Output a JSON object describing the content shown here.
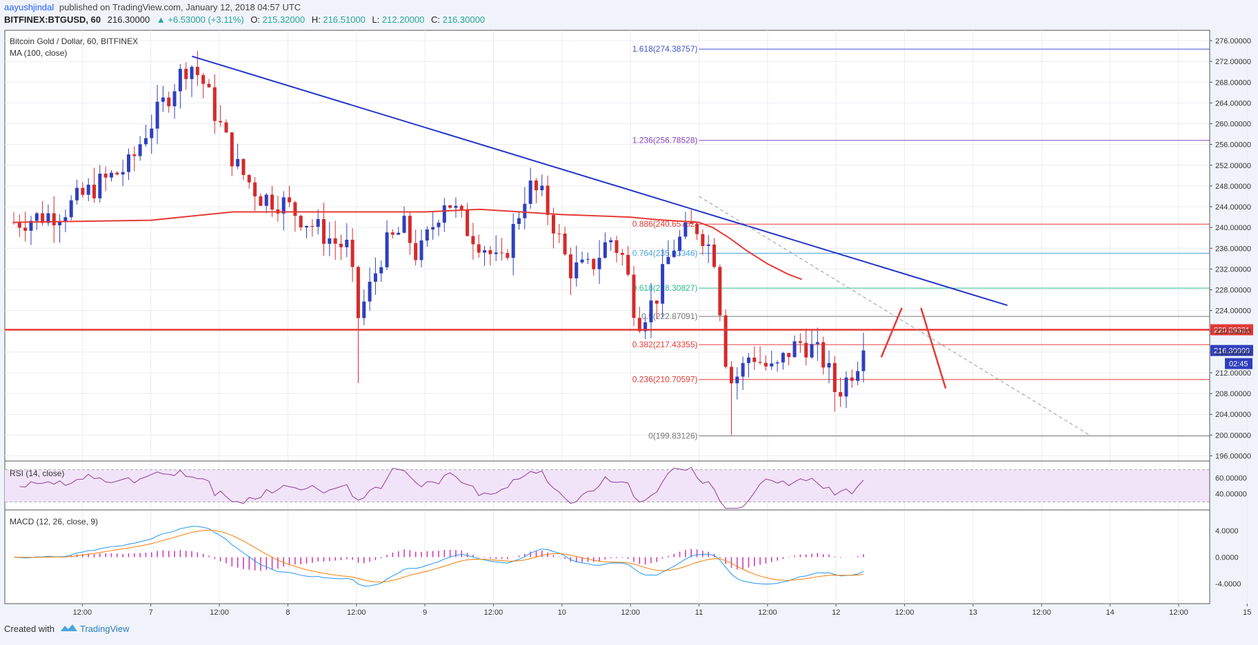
{
  "header": {
    "author": "aayushjindal",
    "published_text": "published on TradingView.com, January 12, 2018 04:57 UTC",
    "symbol": "BITFINEX:BTGUSD, 60",
    "price": "216.30000",
    "change": "▲ +6.53000 (+3.11%)",
    "o_label": "O:",
    "o_value": "215.32000",
    "h_label": "H:",
    "h_value": "216.51000",
    "l_label": "L:",
    "l_value": "212.20000",
    "c_label": "C:",
    "c_value": "216.30000"
  },
  "footer": {
    "created_with": "Created with",
    "brand": "TradingView"
  },
  "colors": {
    "up": "#2f3fbd",
    "down": "#d42b2b",
    "ma": "#e53935",
    "trend": "#2233cc",
    "rsi": "#8e3a9e",
    "rsi_band": "#f2e4f8",
    "macd": "#2196f3",
    "signal": "#f57c00",
    "hist": "#cc33aa",
    "fib_ext": "#4455cc",
    "fib_ext2": "#8844bb",
    "fib_red": "#e53935",
    "fib_blue": "#4aa3df",
    "fib_green": "#2bbf8f",
    "fib_gray": "#777777"
  },
  "chart_data": {
    "type": "candlestick",
    "title": "Bitcoin Gold / Dollar, 60, BITFINEX",
    "indicator_label": "MA (100, close)",
    "ylim": [
      195,
      278
    ],
    "y_ticks": [
      "276.00000",
      "272.00000",
      "268.00000",
      "264.00000",
      "260.00000",
      "256.00000",
      "252.00000",
      "248.00000",
      "244.00000",
      "240.00000",
      "236.00000",
      "232.00000",
      "228.00000",
      "224.00000",
      "220.00000",
      "216.00000",
      "212.00000",
      "208.00000",
      "204.00000",
      "200.00000",
      "196.00000"
    ],
    "x_ticks": [
      {
        "label": "12:00",
        "pos": 0.5
      },
      {
        "label": "7",
        "pos": 1
      },
      {
        "label": "12:00",
        "pos": 1.5
      },
      {
        "label": "8",
        "pos": 2
      },
      {
        "label": "12:00",
        "pos": 2.5
      },
      {
        "label": "9",
        "pos": 3
      },
      {
        "label": "12:00",
        "pos": 3.5
      },
      {
        "label": "10",
        "pos": 4
      },
      {
        "label": "12:00",
        "pos": 4.5
      },
      {
        "label": "11",
        "pos": 5
      },
      {
        "label": "12:00",
        "pos": 5.5
      },
      {
        "label": "12",
        "pos": 6
      },
      {
        "label": "12:00",
        "pos": 6.5
      },
      {
        "label": "13",
        "pos": 7
      },
      {
        "label": "12:00",
        "pos": 7.5
      },
      {
        "label": "14",
        "pos": 8
      },
      {
        "label": "12:00",
        "pos": 8.5
      },
      {
        "label": "15",
        "pos": 9
      }
    ],
    "price_key_points": [
      [
        0,
        241
      ],
      [
        0.35,
        243
      ],
      [
        0.6,
        248
      ],
      [
        0.85,
        252
      ],
      [
        0.95,
        258
      ],
      [
        1.05,
        262
      ],
      [
        1.18,
        268
      ],
      [
        1.28,
        272
      ],
      [
        1.38,
        268
      ],
      [
        1.5,
        260
      ],
      [
        1.62,
        252
      ],
      [
        1.8,
        246
      ],
      [
        1.95,
        245
      ],
      [
        2.05,
        243
      ],
      [
        2.2,
        240
      ],
      [
        2.35,
        237
      ],
      [
        2.45,
        236
      ],
      [
        2.5,
        222
      ],
      [
        2.58,
        227
      ],
      [
        2.7,
        236
      ],
      [
        2.85,
        240
      ],
      [
        2.95,
        234
      ],
      [
        3.05,
        240
      ],
      [
        3.15,
        246
      ],
      [
        3.3,
        240
      ],
      [
        3.45,
        236
      ],
      [
        3.55,
        232
      ],
      [
        3.65,
        240
      ],
      [
        3.75,
        248
      ],
      [
        3.85,
        246
      ],
      [
        3.95,
        240
      ],
      [
        4.05,
        232
      ],
      [
        4.2,
        232
      ],
      [
        4.35,
        238
      ],
      [
        4.45,
        234
      ],
      [
        4.55,
        222
      ],
      [
        4.68,
        226
      ],
      [
        4.8,
        236
      ],
      [
        4.95,
        240
      ],
      [
        5.0,
        240
      ],
      [
        5.12,
        234
      ],
      [
        5.17,
        220
      ],
      [
        5.22,
        210
      ],
      [
        5.3,
        212
      ],
      [
        5.38,
        216
      ],
      [
        5.45,
        214
      ],
      [
        5.55,
        212
      ],
      [
        5.65,
        216
      ],
      [
        5.75,
        218
      ],
      [
        5.85,
        216
      ],
      [
        5.92,
        214
      ],
      [
        6.0,
        208
      ],
      [
        6.06,
        210
      ],
      [
        6.15,
        214
      ],
      [
        6.2,
        216.3
      ]
    ],
    "candle_count": 149,
    "seed": 7,
    "last_price_label": "216.30000",
    "countdown_label": "02:45",
    "support_label": "220.29321",
    "support_value": 220.29321,
    "ma_points": [
      [
        0,
        241
      ],
      [
        1,
        241.4
      ],
      [
        1.6,
        243
      ],
      [
        2,
        243
      ],
      [
        3,
        243
      ],
      [
        3.4,
        243.5
      ],
      [
        4,
        242.5
      ],
      [
        4.5,
        242
      ],
      [
        4.7,
        241.5
      ],
      [
        5.0,
        241
      ],
      [
        5.1,
        240
      ],
      [
        5.22,
        238
      ],
      [
        5.35,
        235.5
      ],
      [
        5.5,
        233
      ],
      [
        5.65,
        231
      ],
      [
        5.75,
        230
      ]
    ],
    "fib_levels": [
      {
        "label": "1.618(274.38757)",
        "value": 274.38757,
        "color_key": "fib_ext"
      },
      {
        "label": "1.236(256.78528)",
        "value": 256.78528,
        "color_key": "fib_ext2"
      },
      {
        "label": "0.886(240.65752)",
        "value": 240.65752,
        "color_key": "fib_red"
      },
      {
        "label": "0.764(235.03346)",
        "value": 235.03346,
        "color_key": "fib_blue"
      },
      {
        "label": "0.618(228.30827)",
        "value": 228.30827,
        "color_key": "fib_green"
      },
      {
        "label": "0.5(222.87091)",
        "value": 222.87091,
        "color_key": "fib_gray"
      },
      {
        "label": "0.382(217.43355)",
        "value": 217.43355,
        "color_key": "fib_red"
      },
      {
        "label": "0.236(210.70597)",
        "value": 210.70597,
        "color_key": "fib_red"
      },
      {
        "label": "0(199.83126)",
        "value": 199.83126,
        "color_key": "fib_gray"
      }
    ],
    "trend_line": [
      [
        1.3,
        273
      ],
      [
        7.25,
        225
      ]
    ],
    "dashed_line": [
      [
        5.0,
        246
      ],
      [
        7.85,
        200
      ]
    ],
    "red_path": [
      [
        6.33,
        215
      ],
      [
        6.48,
        224.5
      ]
    ],
    "red_path2": [
      [
        6.62,
        224.5
      ],
      [
        6.8,
        209
      ]
    ],
    "rsi": {
      "label": "RSI (14, close)",
      "ylim": [
        20,
        80
      ],
      "ticks": [
        "60.00000",
        "40.00000"
      ],
      "upper": 70,
      "lower": 30
    },
    "macd": {
      "label": "MACD (12, 26, close, 9)",
      "ylim": [
        -7,
        7
      ],
      "ticks": [
        "4.0000",
        "0.0000",
        "-4.0000"
      ]
    }
  }
}
